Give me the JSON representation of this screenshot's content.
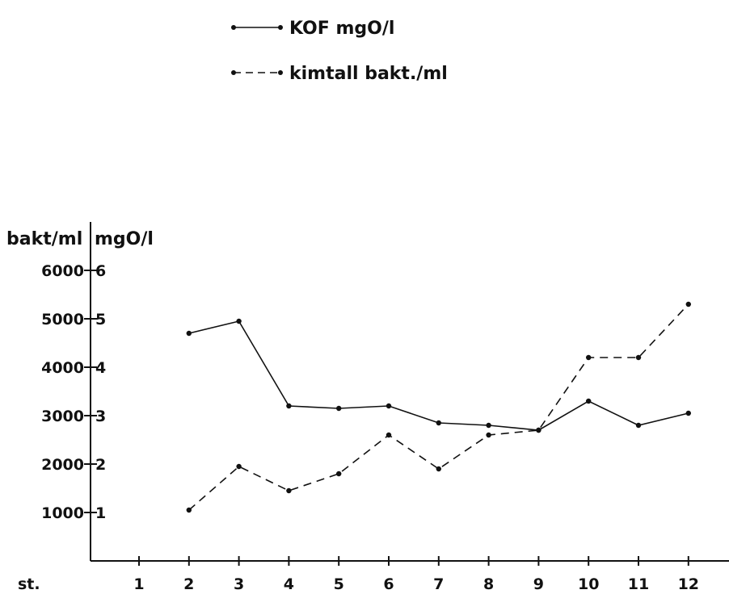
{
  "chart_data": {
    "type": "line",
    "x_prefix": "st.",
    "x": [
      1,
      2,
      3,
      4,
      5,
      6,
      7,
      8,
      9,
      10,
      11,
      12
    ],
    "left_axis_label": "bakt/ml",
    "right_axis_label": "mgO/l",
    "left_ticks": [
      "1000",
      "2000",
      "3000",
      "4000",
      "5000",
      "6000"
    ],
    "right_ticks": [
      "1",
      "2",
      "3",
      "4",
      "5",
      "6"
    ],
    "ylim": [
      0,
      6
    ],
    "series": [
      {
        "name": "KOF mgO/l",
        "style": "solid",
        "x": [
          2,
          3,
          4,
          5,
          6,
          7,
          8,
          9,
          10,
          11,
          12
        ],
        "values": [
          4.7,
          4.95,
          3.2,
          3.15,
          3.2,
          2.85,
          2.8,
          2.7,
          3.3,
          2.8,
          3.05
        ]
      },
      {
        "name": "kimtall bakt./ml",
        "style": "dashed",
        "x": [
          2,
          3,
          4,
          5,
          6,
          7,
          8,
          9,
          10,
          11,
          12
        ],
        "values": [
          1050,
          1950,
          1450,
          1800,
          2600,
          1900,
          2600,
          2700,
          4200,
          4200,
          5300
        ]
      }
    ],
    "grid": false,
    "legend_position": "top"
  }
}
